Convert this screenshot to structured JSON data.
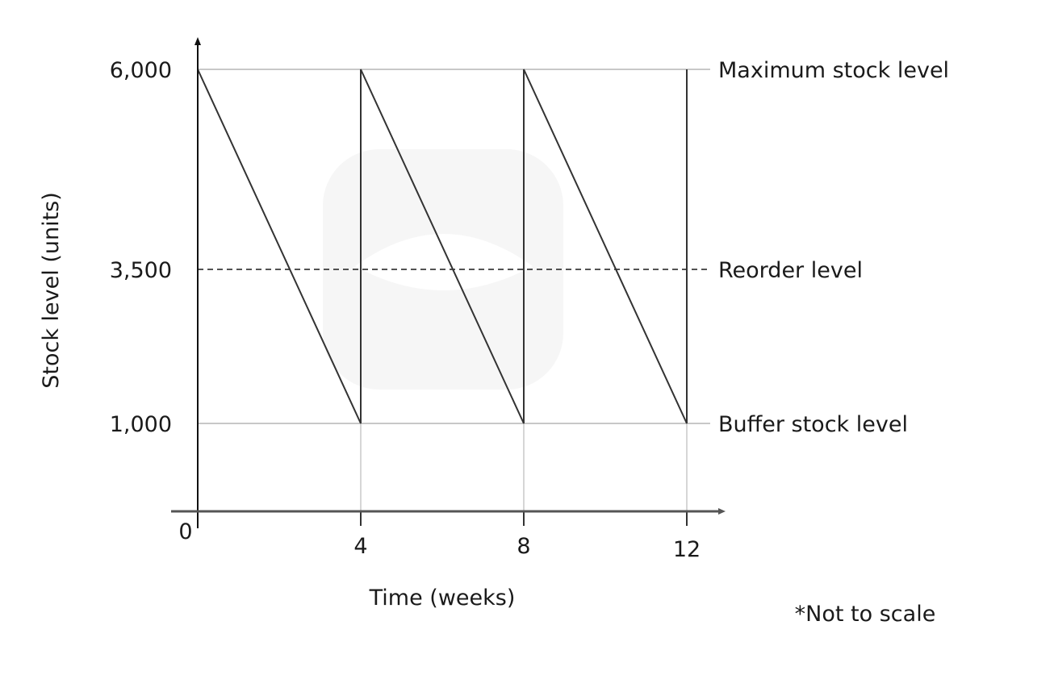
{
  "chart_data": {
    "type": "line",
    "title": "",
    "xlabel": "Time (weeks)",
    "ylabel": "Stock level (units)",
    "x_ticks": [
      "0",
      "4",
      "8",
      "12"
    ],
    "y_ticks": [
      "1,000",
      "3,500",
      "6,000"
    ],
    "y_tick_values": [
      1000,
      3500,
      6000
    ],
    "xlim": [
      0,
      12
    ],
    "ylim": [
      0,
      6000
    ],
    "series": [
      {
        "x": [
          0,
          4,
          4,
          8,
          8,
          12,
          12
        ],
        "y": [
          6000,
          1000,
          6000,
          1000,
          6000,
          1000,
          6000
        ]
      }
    ],
    "reference_lines": [
      {
        "value": 6000,
        "label": "Maximum stock level",
        "style": "solid",
        "color": "#c8c8c8"
      },
      {
        "value": 3500,
        "label": "Reorder level",
        "style": "dashed",
        "color": "#1a1a1a"
      },
      {
        "value": 1000,
        "label": "Buffer stock level",
        "style": "solid",
        "color": "#c8c8c8"
      }
    ],
    "note": "*Not to scale",
    "grid": false,
    "line_color": "#333333"
  }
}
